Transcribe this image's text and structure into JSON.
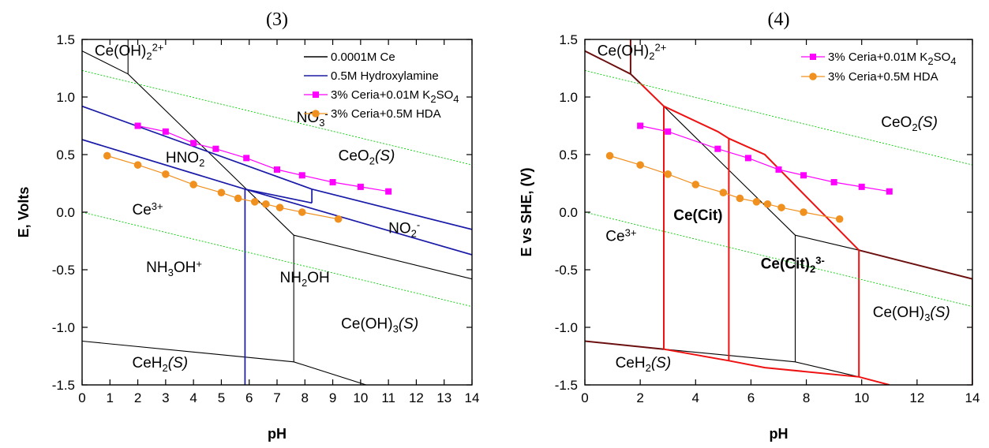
{
  "colors": {
    "ce_boundary": "#000000",
    "hydroxylamine": "#1a1aa8",
    "k2so4_series": "#ff00ff",
    "hda_series": "#f0901e",
    "water_limit": "#00cc00",
    "citrate": "#ee1111",
    "dark_boundary": "#6b0f0f",
    "blue_label": "#1a1aa8",
    "red_label": "#ee1111"
  },
  "chart_data": [
    {
      "type": "line",
      "title": "(3)",
      "xlabel": "pH",
      "ylabel": "E, Volts",
      "xlim": [
        0,
        14
      ],
      "ylim": [
        -1.5,
        1.5
      ],
      "xticks": [
        "0",
        "1",
        "2",
        "3",
        "4",
        "5",
        "6",
        "7",
        "8",
        "9",
        "10",
        "11",
        "12",
        "13",
        "14"
      ],
      "yticks": [
        "1.5",
        "1.0",
        "0.5",
        "0.0",
        "-0.5",
        "-1.0",
        "-1.5"
      ],
      "legend_position": "top-right",
      "legend": [
        {
          "label": "0.0001M Ce",
          "style": "line",
          "color": "#000000"
        },
        {
          "label": "0.5M Hydroxylamine",
          "style": "line",
          "color": "#1a1aa8"
        },
        {
          "label": "3% Ceria+0.01M K2SO4",
          "style": "square",
          "color": "#ff00ff"
        },
        {
          "label": "3% Ceria+0.5M HDA",
          "style": "circle",
          "color": "#f0901e"
        }
      ],
      "boundaries": [
        {
          "group": "ce",
          "points": [
            [
              0,
              1.4
            ],
            [
              1.65,
              1.2
            ],
            [
              7.6,
              -0.2
            ],
            [
              14,
              -0.58
            ]
          ]
        },
        {
          "group": "ce",
          "points": [
            [
              1.65,
              1.5
            ],
            [
              1.65,
              1.2
            ]
          ]
        },
        {
          "group": "ce",
          "points": [
            [
              7.6,
              -0.2
            ],
            [
              7.6,
              -1.3
            ]
          ]
        },
        {
          "group": "ce",
          "points": [
            [
              0,
              -1.12
            ],
            [
              7.6,
              -1.3
            ],
            [
              10.2,
              -1.5
            ]
          ]
        },
        {
          "group": "hydroxylamine",
          "points": [
            [
              0,
              0.92
            ],
            [
              8.25,
              0.2
            ],
            [
              14,
              -0.15
            ]
          ]
        },
        {
          "group": "hydroxylamine",
          "points": [
            [
              0,
              0.63
            ],
            [
              5.85,
              0.2
            ],
            [
              14,
              -0.37
            ]
          ]
        },
        {
          "group": "hydroxylamine",
          "points": [
            [
              5.85,
              0.2
            ],
            [
              8.25,
              0.08
            ]
          ]
        },
        {
          "group": "hydroxylamine",
          "points": [
            [
              8.25,
              0.2
            ],
            [
              8.25,
              0.08
            ]
          ]
        },
        {
          "group": "hydroxylamine",
          "points": [
            [
              5.85,
              0.2
            ],
            [
              5.85,
              -1.5
            ]
          ]
        },
        {
          "group": "water",
          "points": [
            [
              0,
              1.23
            ],
            [
              14,
              0.41
            ]
          ]
        },
        {
          "group": "water",
          "points": [
            [
              0,
              0.0
            ],
            [
              14,
              -0.82
            ]
          ]
        }
      ],
      "series": [
        {
          "name": "3% Ceria+0.01M K2SO4",
          "marker": "square",
          "x": [
            2,
            3,
            4,
            4.8,
            5.9,
            7,
            7.9,
            9,
            10,
            11
          ],
          "y": [
            0.75,
            0.7,
            0.6,
            0.55,
            0.47,
            0.37,
            0.32,
            0.26,
            0.22,
            0.18
          ]
        },
        {
          "name": "3% Ceria+0.5M HDA",
          "marker": "circle",
          "x": [
            0.9,
            2,
            3,
            4,
            5,
            5.6,
            6.2,
            6.6,
            7.1,
            7.9,
            9.2
          ],
          "y": [
            0.49,
            0.41,
            0.33,
            0.24,
            0.17,
            0.12,
            0.09,
            0.07,
            0.04,
            0.0,
            -0.06
          ]
        }
      ],
      "annotations": [
        {
          "x": 0.45,
          "y": 1.36,
          "parts": [
            {
              "t": "Ce(OH)"
            },
            {
              "t": "2",
              "s": "sub"
            },
            {
              "t": "2+",
              "s": "sup"
            }
          ],
          "color": "#000000"
        },
        {
          "x": 7.7,
          "y": 0.78,
          "parts": [
            {
              "t": "NO"
            },
            {
              "t": "3",
              "s": "sub"
            },
            {
              "t": "-",
              "s": "sup"
            }
          ],
          "color": "#1a1aa8"
        },
        {
          "x": 3.0,
          "y": 0.43,
          "parts": [
            {
              "t": "HNO"
            },
            {
              "t": "2",
              "s": "sub"
            }
          ],
          "color": "#1a1aa8"
        },
        {
          "x": 9.2,
          "y": 0.45,
          "parts": [
            {
              "t": "CeO"
            },
            {
              "t": "2",
              "s": "sub"
            },
            {
              "t": "(S)",
              "s": "it"
            }
          ],
          "color": "#000000"
        },
        {
          "x": 1.8,
          "y": -0.02,
          "parts": [
            {
              "t": "Ce"
            },
            {
              "t": "3+",
              "s": "sup"
            }
          ],
          "color": "#000000"
        },
        {
          "x": 11.0,
          "y": -0.18,
          "parts": [
            {
              "t": "NO"
            },
            {
              "t": "2",
              "s": "sub"
            },
            {
              "t": "-",
              "s": "sup"
            }
          ],
          "color": "#1a1aa8"
        },
        {
          "x": 2.3,
          "y": -0.52,
          "parts": [
            {
              "t": "NH"
            },
            {
              "t": "3",
              "s": "sub"
            },
            {
              "t": "OH"
            },
            {
              "t": "+",
              "s": "sup"
            }
          ],
          "color": "#1a1aa8"
        },
        {
          "x": 7.1,
          "y": -0.61,
          "parts": [
            {
              "t": "NH"
            },
            {
              "t": "2",
              "s": "sub"
            },
            {
              "t": "OH"
            }
          ],
          "color": "#1a1aa8"
        },
        {
          "x": 9.3,
          "y": -1.01,
          "parts": [
            {
              "t": "Ce(OH)"
            },
            {
              "t": "3",
              "s": "sub"
            },
            {
              "t": "(S)",
              "s": "it"
            }
          ],
          "color": "#000000"
        },
        {
          "x": 1.8,
          "y": -1.35,
          "parts": [
            {
              "t": "CeH"
            },
            {
              "t": "2",
              "s": "sub"
            },
            {
              "t": "(S)",
              "s": "it"
            }
          ],
          "color": "#000000"
        }
      ]
    },
    {
      "type": "line",
      "title": "(4)",
      "xlabel": "pH",
      "ylabel": "E vs SHE, (V)",
      "xlim": [
        0,
        14
      ],
      "ylim": [
        -1.5,
        1.5
      ],
      "xticks": [
        "0",
        "2",
        "4",
        "6",
        "8",
        "10",
        "12",
        "14"
      ],
      "yticks": [
        "1.5",
        "1.0",
        "0.5",
        "0.0",
        "-0.5",
        "-1.0",
        "-1.5"
      ],
      "legend_position": "top-right",
      "legend": [
        {
          "label": "3% Ceria+0.01M K2SO4",
          "style": "square",
          "color": "#ff00ff"
        },
        {
          "label": "3% Ceria+0.5M HDA",
          "style": "circle",
          "color": "#f0901e"
        }
      ],
      "boundaries": [
        {
          "group": "dark",
          "points": [
            [
              0,
              1.4
            ],
            [
              1.65,
              1.2
            ],
            [
              2.0,
              1.12
            ]
          ]
        },
        {
          "group": "dark",
          "points": [
            [
              1.65,
              1.5
            ],
            [
              1.65,
              1.2
            ]
          ]
        },
        {
          "group": "dark",
          "points": [
            [
              9.9,
              -0.33
            ],
            [
              14,
              -0.58
            ]
          ]
        },
        {
          "group": "dark",
          "points": [
            [
              0,
              -1.12
            ],
            [
              2.85,
              -1.19
            ]
          ]
        },
        {
          "group": "dark",
          "points": [
            [
              14,
              -0.58
            ],
            [
              14,
              -1.5
            ]
          ]
        },
        {
          "group": "ce",
          "points": [
            [
              2.85,
              0.92
            ],
            [
              7.6,
              -0.2
            ],
            [
              9.9,
              -0.33
            ]
          ]
        },
        {
          "group": "ce",
          "points": [
            [
              7.6,
              -0.2
            ],
            [
              7.6,
              -1.3
            ]
          ]
        },
        {
          "group": "ce",
          "points": [
            [
              2.85,
              -1.19
            ],
            [
              7.6,
              -1.3
            ],
            [
              9.9,
              -1.43
            ]
          ]
        },
        {
          "group": "citrate",
          "points": [
            [
              2.0,
              1.12
            ],
            [
              2.85,
              0.92
            ],
            [
              4.8,
              0.7
            ],
            [
              5.2,
              0.64
            ],
            [
              6.5,
              0.5
            ],
            [
              9.9,
              -0.33
            ]
          ]
        },
        {
          "group": "citrate",
          "points": [
            [
              2.85,
              0.92
            ],
            [
              2.85,
              -1.19
            ]
          ]
        },
        {
          "group": "citrate",
          "points": [
            [
              5.2,
              0.64
            ],
            [
              5.2,
              -1.29
            ]
          ]
        },
        {
          "group": "citrate",
          "points": [
            [
              9.9,
              -0.33
            ],
            [
              9.9,
              -1.43
            ]
          ]
        },
        {
          "group": "citrate",
          "points": [
            [
              2.85,
              -1.19
            ],
            [
              5.2,
              -1.29
            ],
            [
              6.5,
              -1.35
            ],
            [
              9.9,
              -1.43
            ],
            [
              11,
              -1.5
            ]
          ]
        },
        {
          "group": "water",
          "points": [
            [
              0,
              1.23
            ],
            [
              14,
              0.41
            ]
          ]
        },
        {
          "group": "water",
          "points": [
            [
              0,
              0.0
            ],
            [
              14,
              -0.82
            ]
          ]
        }
      ],
      "series": [
        {
          "name": "3% Ceria+0.01M K2SO4",
          "marker": "square",
          "x": [
            2,
            3,
            4.8,
            5.9,
            7,
            7.9,
            9,
            10,
            11
          ],
          "y": [
            0.75,
            0.7,
            0.55,
            0.47,
            0.37,
            0.32,
            0.26,
            0.22,
            0.18
          ]
        },
        {
          "name": "3% Ceria+0.5M HDA",
          "marker": "circle",
          "x": [
            0.9,
            2,
            3,
            4,
            5,
            5.6,
            6.2,
            6.6,
            7.1,
            7.9,
            9.2
          ],
          "y": [
            0.49,
            0.41,
            0.33,
            0.24,
            0.17,
            0.12,
            0.09,
            0.07,
            0.04,
            0.0,
            -0.06
          ]
        }
      ],
      "annotations": [
        {
          "x": 0.45,
          "y": 1.36,
          "parts": [
            {
              "t": "Ce(OH)"
            },
            {
              "t": "2",
              "s": "sub"
            },
            {
              "t": "2+",
              "s": "sup"
            }
          ],
          "color": "#000000"
        },
        {
          "x": 10.7,
          "y": 0.74,
          "parts": [
            {
              "t": "CeO"
            },
            {
              "t": "2",
              "s": "sub"
            },
            {
              "t": "(S)",
              "s": "it"
            }
          ],
          "color": "#000000"
        },
        {
          "x": 3.2,
          "y": -0.07,
          "parts": [
            {
              "t": "Ce(Cit)",
              "s": "b"
            }
          ],
          "color": "#ee1111"
        },
        {
          "x": 0.75,
          "y": -0.25,
          "parts": [
            {
              "t": "Ce"
            },
            {
              "t": "3+",
              "s": "sup"
            }
          ],
          "color": "#000000"
        },
        {
          "x": 6.35,
          "y": -0.49,
          "parts": [
            {
              "t": "Ce(Cit)",
              "s": "b"
            },
            {
              "t": "2",
              "s": "sub b"
            },
            {
              "t": "3-",
              "s": "sup b"
            }
          ],
          "color": "#ee1111"
        },
        {
          "x": 10.4,
          "y": -0.91,
          "parts": [
            {
              "t": "Ce(OH)"
            },
            {
              "t": "3",
              "s": "sub"
            },
            {
              "t": "(S)",
              "s": "it"
            }
          ],
          "color": "#000000"
        },
        {
          "x": 1.1,
          "y": -1.35,
          "parts": [
            {
              "t": "CeH"
            },
            {
              "t": "2",
              "s": "sub"
            },
            {
              "t": "(S)",
              "s": "it"
            }
          ],
          "color": "#000000"
        }
      ]
    }
  ]
}
